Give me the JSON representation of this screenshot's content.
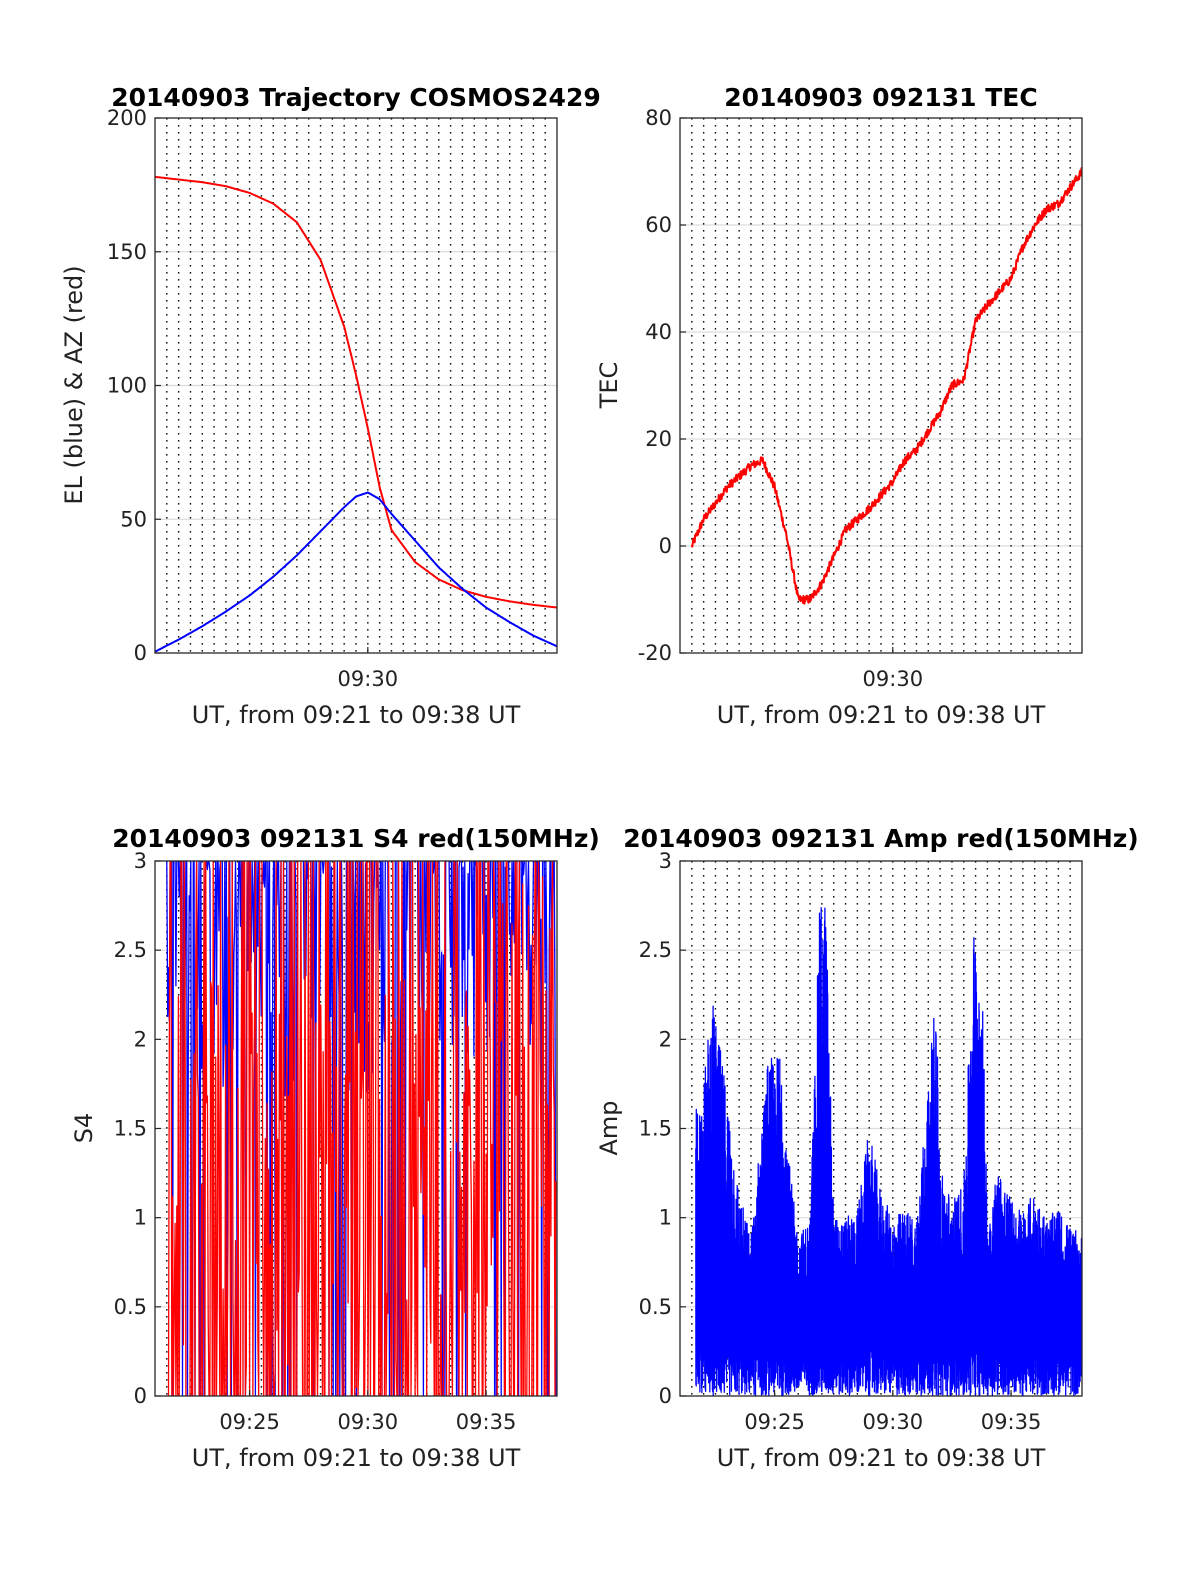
{
  "colors": {
    "red": "#ff0000",
    "blue": "#0000ff",
    "grid": "#dcdcdc"
  },
  "chart_data": [
    {
      "type": "line",
      "title": "20140903 Trajectory COSMOS2429",
      "xlabel": "UT, from 09:21 to 09:38 UT",
      "ylabel": "EL (blue) & AZ (red)",
      "xlim": [
        "09:21",
        "09:38"
      ],
      "xticks": [
        "09:30"
      ],
      "ylim": [
        0,
        200
      ],
      "yticks": [
        0,
        50,
        100,
        150,
        200
      ],
      "vertical_grid_minutes": [
        21.5,
        22,
        22.5,
        23,
        23.5,
        24,
        24.5,
        25,
        25.5,
        26,
        26.5,
        27,
        27.5,
        28,
        28.5,
        29,
        29.5,
        30,
        30.5,
        31,
        31.5,
        32,
        32.5,
        33,
        33.5,
        34,
        34.5,
        35,
        35.5,
        36,
        36.5,
        37,
        37.5
      ],
      "series": [
        {
          "color": "red",
          "x": [
            "09:21",
            "09:22",
            "09:23",
            "09:24",
            "09:25",
            "09:26",
            "09:27",
            "09:28",
            "09:29",
            "09:29:30",
            "09:30",
            "09:30:30",
            "09:31",
            "09:32",
            "09:33",
            "09:34",
            "09:35",
            "09:36",
            "09:37",
            "09:38"
          ],
          "values": [
            178,
            177,
            176,
            174.5,
            172,
            168,
            161,
            147,
            122,
            104,
            84,
            62,
            46,
            34,
            27.5,
            23.5,
            21,
            19.3,
            18,
            17
          ]
        },
        {
          "color": "blue",
          "x": [
            "09:21",
            "09:22",
            "09:23",
            "09:24",
            "09:25",
            "09:26",
            "09:27",
            "09:28",
            "09:29",
            "09:29:30",
            "09:30",
            "09:30:30",
            "09:31",
            "09:32",
            "09:33",
            "09:34",
            "09:35",
            "09:36",
            "09:37",
            "09:38"
          ],
          "values": [
            0.5,
            5,
            10,
            15.5,
            21.5,
            28.5,
            36.5,
            45.5,
            54.5,
            58.5,
            60,
            57.5,
            52,
            42,
            32,
            24,
            17,
            11.5,
            6.5,
            2.5
          ]
        }
      ]
    },
    {
      "type": "line",
      "title": "20140903 092131 TEC",
      "xlabel": "UT, from 09:21 to 09:38 UT",
      "ylabel": "TEC",
      "xlim": [
        "09:21",
        "09:38"
      ],
      "xticks": [
        "09:30"
      ],
      "ylim": [
        -20,
        80
      ],
      "yticks": [
        -20,
        0,
        20,
        40,
        60,
        80
      ],
      "vertical_grid_minutes": [
        21.5,
        22,
        22.5,
        23,
        23.5,
        24,
        24.5,
        25,
        25.5,
        26,
        26.5,
        27,
        27.5,
        28,
        28.5,
        29,
        29.5,
        30,
        30.5,
        31,
        31.5,
        32,
        32.5,
        33,
        33.5,
        34,
        34.5,
        35,
        35.5,
        36,
        36.5,
        37,
        37.5
      ],
      "series": [
        {
          "color": "red",
          "x": [
            "09:21:30",
            "09:22",
            "09:22:30",
            "09:23",
            "09:23:30",
            "09:24",
            "09:24:30",
            "09:25",
            "09:25:30",
            "09:26",
            "09:26:30",
            "09:27",
            "09:27:30",
            "09:28",
            "09:29",
            "09:30",
            "09:30:30",
            "09:31",
            "09:32",
            "09:32:30",
            "09:33",
            "09:33:30",
            "09:34",
            "09:35",
            "09:35:30",
            "09:36",
            "09:36:30",
            "09:37",
            "09:37:30",
            "09:38"
          ],
          "values": [
            0,
            5,
            8,
            11,
            13,
            15,
            16,
            11,
            2,
            -10,
            -10,
            -7,
            -2,
            3,
            7,
            12,
            16,
            18,
            25,
            30,
            31,
            42,
            45,
            50,
            56,
            60,
            63,
            64,
            67,
            70
          ]
        }
      ]
    },
    {
      "type": "line",
      "title": "20140903 092131 S4 red(150MHz)",
      "xlabel": "UT, from 09:21 to 09:38 UT",
      "ylabel": "S4",
      "xlim": [
        "09:21",
        "09:38"
      ],
      "xticks": [
        "09:25",
        "09:30",
        "09:35"
      ],
      "ylim": [
        0,
        3
      ],
      "yticks": [
        0,
        0.5,
        1,
        1.5,
        2,
        2.5,
        3
      ],
      "vertical_grid_minutes": [
        21.5,
        22,
        22.5,
        23,
        23.5,
        24,
        24.5,
        25,
        25.5,
        26,
        26.5,
        27,
        27.5,
        28,
        28.5,
        29,
        29.5,
        30,
        30.5,
        31,
        31.5,
        32,
        32.5,
        33,
        33.5,
        34,
        34.5,
        35,
        35.5,
        36,
        36.5,
        37,
        37.5
      ],
      "series": [
        {
          "color": "blue",
          "x": [
            "09:21:30",
            "09:25",
            "09:30",
            "09:35",
            "09:38"
          ],
          "values": [
            2.6,
            2.4,
            2.5,
            2.7,
            2.8
          ]
        },
        {
          "color": "red",
          "x": [
            "09:21:30",
            "09:25",
            "09:30",
            "09:35",
            "09:38"
          ],
          "values": [
            1.4,
            1.2,
            1.1,
            1.6,
            2.0
          ]
        }
      ]
    },
    {
      "type": "line",
      "title": "20140903 092131 Amp red(150MHz)",
      "xlabel": "UT, from 09:21 to 09:38 UT",
      "ylabel": "Amp",
      "xlim": [
        "09:21",
        "09:38"
      ],
      "xticks": [
        "09:25",
        "09:30",
        "09:35"
      ],
      "ylim": [
        0,
        3
      ],
      "yticks": [
        0,
        0.5,
        1,
        1.5,
        2,
        2.5,
        3
      ],
      "vertical_grid_minutes": [
        21.5,
        22,
        22.5,
        23,
        23.5,
        24,
        24.5,
        25,
        25.5,
        26,
        26.5,
        27,
        27.5,
        28,
        28.5,
        29,
        29.5,
        30,
        30.5,
        31,
        31.5,
        32,
        32.5,
        33,
        33.5,
        34,
        34.5,
        35,
        35.5,
        36,
        36.5,
        37,
        37.5
      ],
      "series": [
        {
          "color": "blue",
          "x": [
            "09:21:40",
            "09:22",
            "09:22:20",
            "09:23",
            "09:23:30",
            "09:24",
            "09:24:45",
            "09:25",
            "09:25:15",
            "09:25:40",
            "09:26",
            "09:26:30",
            "09:26:55",
            "09:27:10",
            "09:27:30",
            "09:28",
            "09:28:30",
            "09:29",
            "09:29:30",
            "09:30",
            "09:30:30",
            "09:31",
            "09:31:50",
            "09:32",
            "09:32:30",
            "09:33",
            "09:33:25",
            "09:33:45",
            "09:34",
            "09:34:30",
            "09:35",
            "09:35:30",
            "09:36",
            "09:36:30",
            "09:37",
            "09:37:30",
            "09:38"
          ],
          "values": [
            1.65,
            1.75,
            2.25,
            1.7,
            1.15,
            0.9,
            1.95,
            1.85,
            2.0,
            1.25,
            0.9,
            1.0,
            2.8,
            2.8,
            1.0,
            1.0,
            1.05,
            1.5,
            1.15,
            1.0,
            1.05,
            1.0,
            2.28,
            1.3,
            1.1,
            1.2,
            2.65,
            2.45,
            1.05,
            1.3,
            1.1,
            1.05,
            1.15,
            1.0,
            1.05,
            0.95,
            0.9
          ]
        }
      ]
    }
  ]
}
